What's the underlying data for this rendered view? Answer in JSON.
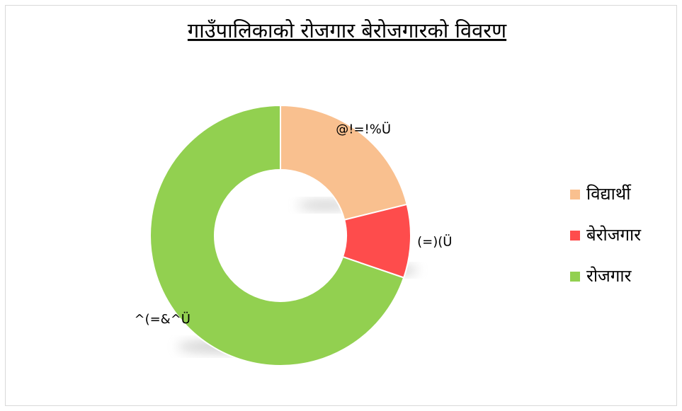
{
  "chart_data": {
    "type": "donut",
    "title": "गाउँपालिकाको रोजगार बेरोजगारको विवरण",
    "categories": [
      "विद्यार्थी",
      "बेरोजगार",
      "रोजगार"
    ],
    "values": [
      21.15,
      9.09,
      69.76
    ],
    "value_labels": [
      "@!=!%Ü",
      "(=)(Ü",
      "^(=&^Ü"
    ],
    "colors": [
      "#f9c08f",
      "#fe4c4c",
      "#92d050"
    ],
    "legend": "right"
  }
}
